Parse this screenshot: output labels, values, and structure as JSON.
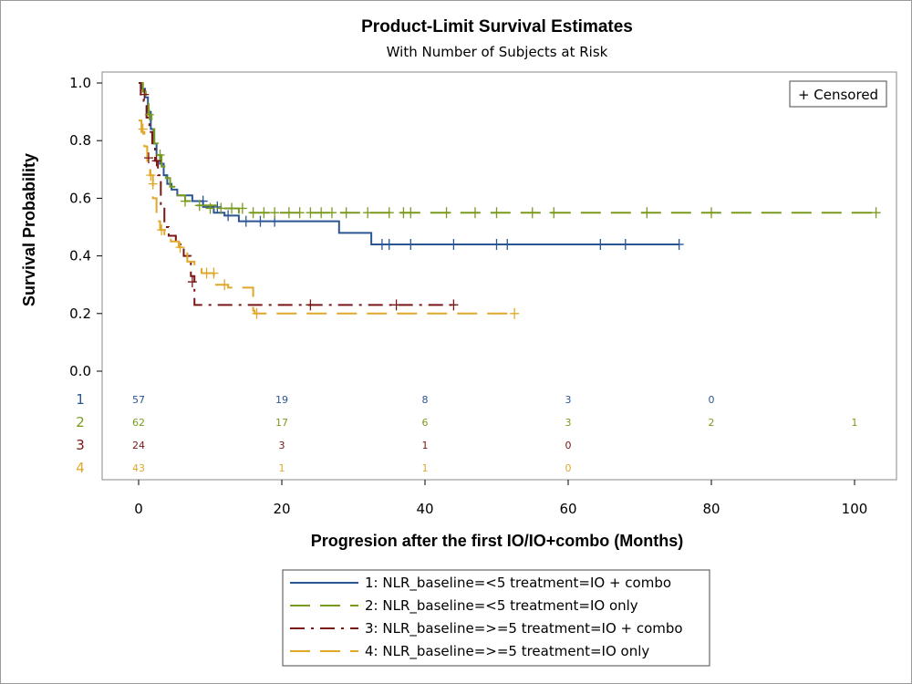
{
  "chart_data": {
    "type": "line",
    "title": "Product-Limit Survival Estimates",
    "subtitle": "With Number of Subjects at Risk",
    "xlabel": "Progresion after the first IO/IO+combo (Months)",
    "ylabel": "Survival Probability",
    "xlim": [
      -3,
      104
    ],
    "ylim": [
      0.0,
      1.0
    ],
    "x_ticks": [
      "0",
      "20",
      "40",
      "60",
      "80",
      "100"
    ],
    "x_tick_values": [
      0,
      20,
      40,
      60,
      80,
      100
    ],
    "y_ticks": [
      "0.0",
      "0.2",
      "0.4",
      "0.6",
      "0.8",
      "1.0"
    ],
    "y_tick_values": [
      0.0,
      0.2,
      0.4,
      0.6,
      0.8,
      1.0
    ],
    "censored_legend": "+ Censored",
    "risk_times": [
      0,
      20,
      40,
      60,
      80,
      100
    ],
    "series": [
      {
        "id": "1",
        "name": "1: NLR_baseline=<5 treatment=IO + combo",
        "color": "#2a5694",
        "dash": "solid",
        "steps": [
          [
            0,
            1.0
          ],
          [
            0.5,
            0.98
          ],
          [
            0.9,
            0.95
          ],
          [
            1.3,
            0.9
          ],
          [
            1.7,
            0.84
          ],
          [
            2.1,
            0.79
          ],
          [
            2.5,
            0.75
          ],
          [
            3.0,
            0.72
          ],
          [
            3.5,
            0.68
          ],
          [
            4.0,
            0.65
          ],
          [
            4.6,
            0.63
          ],
          [
            5.4,
            0.61
          ],
          [
            7.5,
            0.59
          ],
          [
            9.0,
            0.57
          ],
          [
            10.5,
            0.55
          ],
          [
            12.0,
            0.54
          ],
          [
            14.0,
            0.52
          ],
          [
            22.0,
            0.52
          ],
          [
            28.0,
            0.48
          ],
          [
            32.5,
            0.44
          ],
          [
            75.5,
            0.44
          ]
        ],
        "censored": [
          [
            9,
            0.59
          ],
          [
            11,
            0.57
          ],
          [
            12.5,
            0.54
          ],
          [
            15,
            0.52
          ],
          [
            17,
            0.52
          ],
          [
            19,
            0.52
          ],
          [
            34,
            0.44
          ],
          [
            35,
            0.44
          ],
          [
            38,
            0.44
          ],
          [
            44,
            0.44
          ],
          [
            50,
            0.44
          ],
          [
            51.5,
            0.44
          ],
          [
            64.5,
            0.44
          ],
          [
            68,
            0.44
          ],
          [
            75.5,
            0.44
          ]
        ],
        "at_risk": [
          "57",
          "19",
          "8",
          "3",
          "0",
          ""
        ]
      },
      {
        "id": "2",
        "name": "2: NLR_baseline=<5 treatment=IO only",
        "color": "#7a9a1e",
        "dash": "long",
        "steps": [
          [
            0,
            1.0
          ],
          [
            0.6,
            0.97
          ],
          [
            1.0,
            0.94
          ],
          [
            1.4,
            0.89
          ],
          [
            1.8,
            0.84
          ],
          [
            2.2,
            0.79
          ],
          [
            2.7,
            0.75
          ],
          [
            3.2,
            0.71
          ],
          [
            3.8,
            0.67
          ],
          [
            4.4,
            0.64
          ],
          [
            5.2,
            0.61
          ],
          [
            6.5,
            0.59
          ],
          [
            8.0,
            0.575
          ],
          [
            11.0,
            0.565
          ],
          [
            14.0,
            0.55
          ],
          [
            103.0,
            0.55
          ]
        ],
        "censored": [
          [
            1.5,
            0.89
          ],
          [
            3,
            0.75
          ],
          [
            6.5,
            0.59
          ],
          [
            8.5,
            0.575
          ],
          [
            10,
            0.565
          ],
          [
            11.5,
            0.565
          ],
          [
            13,
            0.565
          ],
          [
            14.5,
            0.565
          ],
          [
            16,
            0.55
          ],
          [
            17.5,
            0.55
          ],
          [
            19,
            0.55
          ],
          [
            21,
            0.55
          ],
          [
            22.5,
            0.55
          ],
          [
            24,
            0.55
          ],
          [
            25.5,
            0.55
          ],
          [
            27,
            0.55
          ],
          [
            29,
            0.55
          ],
          [
            32,
            0.55
          ],
          [
            35,
            0.55
          ],
          [
            37,
            0.55
          ],
          [
            38,
            0.55
          ],
          [
            43,
            0.55
          ],
          [
            47,
            0.55
          ],
          [
            50,
            0.55
          ],
          [
            55,
            0.55
          ],
          [
            58,
            0.55
          ],
          [
            71,
            0.55
          ],
          [
            80,
            0.55
          ],
          [
            103,
            0.55
          ]
        ],
        "at_risk": [
          "62",
          "17",
          "6",
          "3",
          "2",
          "1"
        ]
      },
      {
        "id": "3",
        "name": "3: NLR_baseline=>=5 treatment=IO + combo",
        "color": "#7a1616",
        "dash": "dashdot",
        "steps": [
          [
            0,
            1.0
          ],
          [
            0.3,
            0.96
          ],
          [
            0.7,
            0.92
          ],
          [
            1.1,
            0.88
          ],
          [
            1.5,
            0.83
          ],
          [
            1.9,
            0.78
          ],
          [
            2.3,
            0.73
          ],
          [
            2.7,
            0.68
          ],
          [
            3.1,
            0.58
          ],
          [
            3.6,
            0.5
          ],
          [
            4.2,
            0.47
          ],
          [
            5.2,
            0.44
          ],
          [
            6.3,
            0.4
          ],
          [
            7.3,
            0.33
          ],
          [
            7.8,
            0.23
          ],
          [
            44.0,
            0.23
          ]
        ],
        "censored": [
          [
            0.8,
            0.96
          ],
          [
            1.4,
            0.74
          ],
          [
            2.5,
            0.73
          ],
          [
            7.5,
            0.31
          ],
          [
            24,
            0.23
          ],
          [
            36,
            0.23
          ],
          [
            44,
            0.23
          ]
        ],
        "at_risk": [
          "24",
          "3",
          "1",
          "0",
          "",
          ""
        ]
      },
      {
        "id": "4",
        "name": "4: NLR_baseline=>=5 treatment=IO only",
        "color": "#e0a82b",
        "dash": "long",
        "steps": [
          [
            0,
            0.87
          ],
          [
            0.4,
            0.83
          ],
          [
            0.8,
            0.78
          ],
          [
            1.2,
            0.73
          ],
          [
            1.6,
            0.68
          ],
          [
            2.0,
            0.6
          ],
          [
            2.5,
            0.52
          ],
          [
            3.0,
            0.49
          ],
          [
            3.6,
            0.47
          ],
          [
            4.5,
            0.45
          ],
          [
            5.6,
            0.43
          ],
          [
            6.8,
            0.38
          ],
          [
            7.8,
            0.36
          ],
          [
            8.8,
            0.34
          ],
          [
            10.5,
            0.3
          ],
          [
            12.5,
            0.29
          ],
          [
            16.0,
            0.21
          ],
          [
            16.2,
            0.2
          ],
          [
            52.5,
            0.2
          ]
        ],
        "censored": [
          [
            0.6,
            0.84
          ],
          [
            1.7,
            0.68
          ],
          [
            2.0,
            0.65
          ],
          [
            3.2,
            0.49
          ],
          [
            5.8,
            0.43
          ],
          [
            9.5,
            0.34
          ],
          [
            10.5,
            0.34
          ],
          [
            12.0,
            0.3
          ],
          [
            16.5,
            0.2
          ],
          [
            52.5,
            0.2
          ]
        ],
        "at_risk": [
          "43",
          "1",
          "1",
          "0",
          "",
          ""
        ]
      }
    ],
    "legend_placement": "bottom"
  }
}
